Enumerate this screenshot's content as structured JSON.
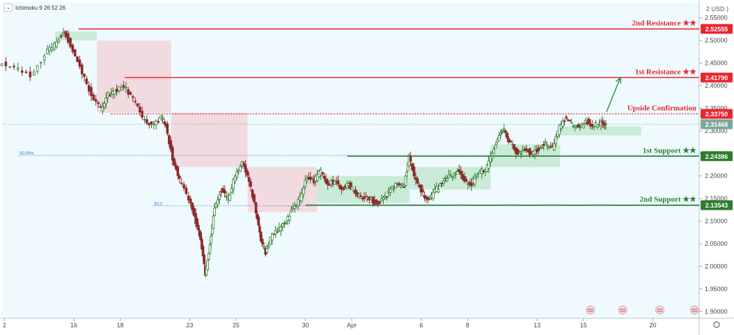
{
  "indicator_legend": "Ichimoku 9 26 52 26",
  "currency": "USD",
  "colors": {
    "background": "#eefafe",
    "resistance": "#e8262e",
    "support": "#2e7d2e",
    "confirmation": "#e8262e",
    "price_line": "#7aa89a",
    "fib": "#3b6fc6",
    "candle_up": "#2f7a2f",
    "candle_down": "#8a2a2a",
    "cloud_bull": "#bde6c9",
    "cloud_bear": "#f2cfd5",
    "arrow": "#2e8b3a"
  },
  "chart_data": {
    "type": "candlestick",
    "y_axis": {
      "ticks": [
        "2.55000",
        "2.50000",
        "2.45000",
        "2.40000",
        "2.35000",
        "2.30000",
        "2.25000",
        "2.20000",
        "2.15000",
        "2.10000",
        "2.05000",
        "2.00000",
        "1.95000",
        "1.90000"
      ],
      "range": [
        1.885,
        2.585
      ]
    },
    "x_axis": {
      "ticks": [
        "2",
        "16",
        "18",
        "23",
        "25",
        "30",
        "Apr",
        "6",
        "8",
        "13",
        "15",
        "20"
      ],
      "tick_positions": [
        0,
        3,
        5,
        8,
        10,
        13,
        15,
        18,
        20,
        23,
        25,
        28
      ]
    },
    "levels": [
      {
        "label": "2nd Resistance ★★",
        "value": 2.52555,
        "price_label": "2.52555",
        "kind": "resistance",
        "style": "solid",
        "x_start": 3.2
      },
      {
        "label": "1st Resistance ★★",
        "value": 2.4179,
        "price_label": "2.41790",
        "kind": "resistance",
        "style": "solid",
        "x_start": 5.2
      },
      {
        "label": "Upside Confirmation",
        "value": 2.3375,
        "price_label": "2.33750",
        "kind": "confirmation",
        "style": "dotted",
        "x_start": 4.6
      },
      {
        "label": "1st Support ★★",
        "value": 2.24386,
        "price_label": "2.24386",
        "kind": "support",
        "style": "solid",
        "x_start": 14.8
      },
      {
        "label": "2nd Support ★★",
        "value": 2.13543,
        "price_label": "2.13543",
        "kind": "support",
        "style": "solid",
        "x_start": 13.0
      }
    ],
    "current_price": {
      "value": 2.31468,
      "label": "2.31468"
    },
    "fib_levels": [
      {
        "label": "50.00%",
        "value": 2.2455,
        "x_label": 1.2
      },
      {
        "label": "50.0",
        "value": 2.134,
        "x_label": 7.0
      }
    ],
    "arrow": {
      "from": [
        26.0,
        2.342
      ],
      "to": [
        26.6,
        2.418
      ]
    },
    "price_path": [
      [
        -0.2,
        2.45
      ],
      [
        0.5,
        2.44
      ],
      [
        1.2,
        2.42
      ],
      [
        1.8,
        2.47
      ],
      [
        2.2,
        2.49
      ],
      [
        2.6,
        2.52
      ],
      [
        3.0,
        2.48
      ],
      [
        3.4,
        2.43
      ],
      [
        3.8,
        2.38
      ],
      [
        4.2,
        2.35
      ],
      [
        4.5,
        2.38
      ],
      [
        4.8,
        2.39
      ],
      [
        5.2,
        2.4
      ],
      [
        5.6,
        2.37
      ],
      [
        6.0,
        2.33
      ],
      [
        6.4,
        2.31
      ],
      [
        6.8,
        2.33
      ],
      [
        7.0,
        2.31
      ],
      [
        7.3,
        2.24
      ],
      [
        7.6,
        2.19
      ],
      [
        8.0,
        2.15
      ],
      [
        8.3,
        2.1
      ],
      [
        8.5,
        2.06
      ],
      [
        8.7,
        1.98
      ],
      [
        8.9,
        2.05
      ],
      [
        9.1,
        2.13
      ],
      [
        9.4,
        2.17
      ],
      [
        9.7,
        2.15
      ],
      [
        10.0,
        2.2
      ],
      [
        10.3,
        2.23
      ],
      [
        10.6,
        2.19
      ],
      [
        10.9,
        2.12
      ],
      [
        11.1,
        2.06
      ],
      [
        11.3,
        2.03
      ],
      [
        11.6,
        2.07
      ],
      [
        11.9,
        2.08
      ],
      [
        12.2,
        2.1
      ],
      [
        12.5,
        2.13
      ],
      [
        12.8,
        2.15
      ],
      [
        13.1,
        2.2
      ],
      [
        13.4,
        2.19
      ],
      [
        13.7,
        2.21
      ],
      [
        14.0,
        2.18
      ],
      [
        14.3,
        2.19
      ],
      [
        14.6,
        2.17
      ],
      [
        14.9,
        2.18
      ],
      [
        15.2,
        2.16
      ],
      [
        15.5,
        2.15
      ],
      [
        15.8,
        2.15
      ],
      [
        16.1,
        2.14
      ],
      [
        16.4,
        2.15
      ],
      [
        16.7,
        2.17
      ],
      [
        17.0,
        2.18
      ],
      [
        17.3,
        2.18
      ],
      [
        17.5,
        2.24
      ],
      [
        17.8,
        2.19
      ],
      [
        18.1,
        2.16
      ],
      [
        18.4,
        2.15
      ],
      [
        18.7,
        2.17
      ],
      [
        19.0,
        2.19
      ],
      [
        19.3,
        2.2
      ],
      [
        19.6,
        2.21
      ],
      [
        19.9,
        2.19
      ],
      [
        20.2,
        2.18
      ],
      [
        20.5,
        2.21
      ],
      [
        20.8,
        2.21
      ],
      [
        21.1,
        2.25
      ],
      [
        21.4,
        2.29
      ],
      [
        21.6,
        2.3
      ],
      [
        21.9,
        2.27
      ],
      [
        22.2,
        2.25
      ],
      [
        22.5,
        2.26
      ],
      [
        22.8,
        2.25
      ],
      [
        23.1,
        2.26
      ],
      [
        23.4,
        2.27
      ],
      [
        23.7,
        2.26
      ],
      [
        24.0,
        2.31
      ],
      [
        24.3,
        2.33
      ],
      [
        24.6,
        2.31
      ],
      [
        24.9,
        2.31
      ],
      [
        25.2,
        2.32
      ],
      [
        25.5,
        2.31
      ],
      [
        25.8,
        2.32
      ],
      [
        26.0,
        2.31
      ]
    ],
    "cloud": [
      {
        "x0": 2.2,
        "x1": 4.0,
        "kind": "bull",
        "top": 2.52,
        "bottom": 2.5
      },
      {
        "x0": 4.0,
        "x1": 7.2,
        "kind": "bear",
        "top": 2.5,
        "bottom": 2.34
      },
      {
        "x0": 7.2,
        "x1": 10.5,
        "kind": "bear",
        "top": 2.34,
        "bottom": 2.22
      },
      {
        "x0": 10.5,
        "x1": 13.5,
        "kind": "bear",
        "top": 2.22,
        "bottom": 2.12
      },
      {
        "x0": 13.5,
        "x1": 17.5,
        "kind": "bull",
        "top": 2.2,
        "bottom": 2.14
      },
      {
        "x0": 17.5,
        "x1": 21.0,
        "kind": "bull",
        "top": 2.22,
        "bottom": 2.17
      },
      {
        "x0": 21.0,
        "x1": 24.0,
        "kind": "bull",
        "top": 2.27,
        "bottom": 2.22
      },
      {
        "x0": 24.0,
        "x1": 27.5,
        "kind": "bull",
        "top": 2.31,
        "bottom": 2.29
      }
    ]
  }
}
